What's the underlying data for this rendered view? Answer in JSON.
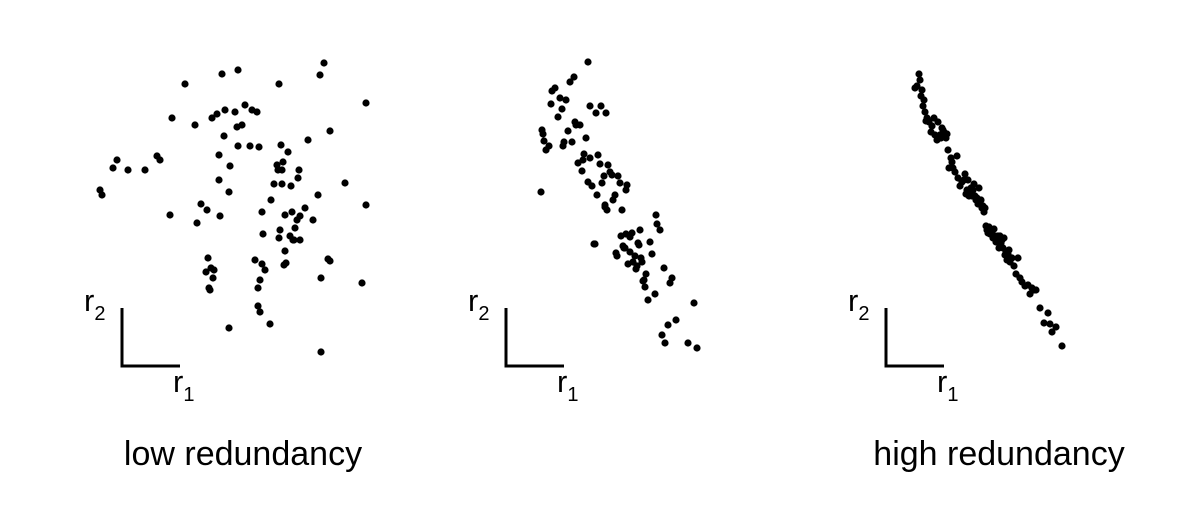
{
  "colors": {
    "point": "#000000",
    "axis": "#000000",
    "background": "#ffffff"
  },
  "chart_data": [
    {
      "type": "scatter",
      "caption": "low redundancy",
      "xlabel": "r",
      "xlabel_sub": "1",
      "ylabel": "r",
      "ylabel_sub": "2",
      "x": [
        100,
        102,
        117,
        113,
        128,
        145,
        160,
        157,
        170,
        172,
        185,
        195,
        197,
        201,
        206,
        207,
        208,
        209,
        210,
        211,
        212,
        213,
        214,
        217,
        219,
        219,
        220,
        222,
        224,
        225,
        229,
        229,
        230,
        235,
        237,
        238,
        238,
        242,
        245,
        250,
        252,
        255,
        257,
        258,
        258,
        259,
        260,
        260,
        262,
        262,
        263,
        265,
        270,
        271,
        274,
        277,
        278,
        279,
        279,
        280,
        281,
        282,
        282,
        283,
        284,
        285,
        285,
        286,
        288,
        290,
        291,
        292,
        293,
        294,
        295,
        297,
        298,
        299,
        300,
        300,
        305,
        308,
        313,
        318,
        320,
        321,
        321,
        324,
        328,
        330,
        330,
        345,
        362,
        366,
        366
      ],
      "y": [
        190,
        195,
        160,
        168,
        170,
        170,
        160,
        156,
        215,
        118,
        84,
        125,
        223,
        204,
        272,
        210,
        258,
        288,
        290,
        268,
        118,
        278,
        270,
        114,
        180,
        155,
        216,
        74,
        136,
        110,
        192,
        328,
        166,
        112,
        127,
        146,
        70,
        125,
        105,
        146,
        110,
        260,
        112,
        306,
        288,
        147,
        312,
        280,
        264,
        212,
        234,
        270,
        324,
        200,
        184,
        165,
        170,
        84,
        238,
        230,
        145,
        184,
        170,
        162,
        265,
        251,
        215,
        263,
        152,
        236,
        186,
        212,
        240,
        240,
        228,
        220,
        178,
        170,
        216,
        240,
        208,
        140,
        220,
        195,
        75,
        278,
        352,
        63,
        259,
        131,
        261,
        183,
        283,
        103,
        205
      ]
    },
    {
      "type": "scatter",
      "caption": "",
      "xlabel": "r",
      "xlabel_sub": "1",
      "ylabel": "r",
      "ylabel_sub": "2",
      "x": [
        541,
        542,
        543,
        544,
        546,
        549,
        551,
        552,
        555,
        558,
        560,
        562,
        563,
        564,
        566,
        568,
        570,
        572,
        574,
        575,
        576,
        578,
        580,
        582,
        583,
        584,
        586,
        588,
        588,
        590,
        590,
        592,
        594,
        595,
        596,
        597,
        598,
        600,
        601,
        602,
        604,
        605,
        605,
        606,
        607,
        608,
        610,
        612,
        613,
        615,
        616,
        617,
        618,
        620,
        621,
        622,
        623,
        624,
        625,
        626,
        626,
        627,
        628,
        630,
        630,
        632,
        633,
        635,
        636,
        637,
        638,
        639,
        640,
        641,
        642,
        643,
        644,
        645,
        646,
        648,
        650,
        652,
        655,
        656,
        657,
        660,
        662,
        664,
        665,
        668,
        670,
        672,
        676,
        688,
        694,
        697
      ],
      "y": [
        192,
        130,
        134,
        141,
        150,
        146,
        104,
        91,
        88,
        117,
        98,
        109,
        146,
        142,
        100,
        131,
        82,
        142,
        77,
        122,
        125,
        163,
        125,
        171,
        160,
        154,
        138,
        182,
        62,
        158,
        106,
        186,
        244,
        244,
        113,
        195,
        155,
        164,
        106,
        183,
        176,
        207,
        205,
        113,
        210,
        165,
        172,
        175,
        200,
        195,
        253,
        256,
        176,
        183,
        236,
        210,
        246,
        248,
        248,
        190,
        234,
        185,
        264,
        237,
        252,
        233,
        262,
        256,
        269,
        266,
        243,
        245,
        230,
        258,
        262,
        281,
        280,
        287,
        274,
        300,
        242,
        254,
        294,
        215,
        224,
        230,
        335,
        268,
        343,
        325,
        283,
        278,
        320,
        343,
        303,
        348
      ]
    },
    {
      "type": "scatter",
      "caption": "high redundancy",
      "xlabel": "r",
      "xlabel_sub": "1",
      "ylabel": "r",
      "ylabel_sub": "2",
      "x": [
        915,
        917,
        919,
        920,
        921,
        922,
        923,
        924,
        925,
        926,
        927,
        929,
        931,
        932,
        934,
        935,
        937,
        938,
        940,
        941,
        942,
        943,
        944,
        945,
        946,
        947,
        948,
        949,
        951,
        952,
        953,
        955,
        957,
        958,
        960,
        962,
        964,
        965,
        966,
        967,
        968,
        969,
        970,
        971,
        972,
        973,
        974,
        975,
        976,
        977,
        978,
        979,
        980,
        981,
        982,
        983,
        984,
        985,
        986,
        987,
        988,
        989,
        990,
        991,
        992,
        993,
        994,
        995,
        996,
        997,
        998,
        999,
        1000,
        1001,
        1002,
        1003,
        1004,
        1005,
        1006,
        1007,
        1008,
        1009,
        1010,
        1012,
        1014,
        1016,
        1018,
        1020,
        1022,
        1025,
        1028,
        1030,
        1032,
        1034,
        1036,
        1040,
        1044,
        1048,
        1050,
        1052,
        1056,
        1062
      ],
      "y": [
        88,
        86,
        74,
        80,
        96,
        90,
        106,
        100,
        112,
        121,
        118,
        122,
        132,
        126,
        118,
        135,
        140,
        122,
        135,
        138,
        128,
        130,
        132,
        137,
        138,
        134,
        150,
        168,
        158,
        162,
        168,
        172,
        156,
        178,
        186,
        182,
        180,
        174,
        194,
        190,
        180,
        196,
        190,
        188,
        196,
        190,
        184,
        196,
        200,
        198,
        204,
        188,
        200,
        200,
        208,
        206,
        212,
        208,
        226,
        230,
        233,
        227,
        234,
        232,
        231,
        238,
        229,
        236,
        242,
        240,
        236,
        248,
        236,
        243,
        240,
        248,
        238,
        255,
        252,
        260,
        254,
        250,
        262,
        258,
        266,
        274,
        258,
        278,
        282,
        286,
        285,
        294,
        288,
        290,
        290,
        308,
        323,
        313,
        324,
        332,
        327,
        346
      ]
    }
  ]
}
